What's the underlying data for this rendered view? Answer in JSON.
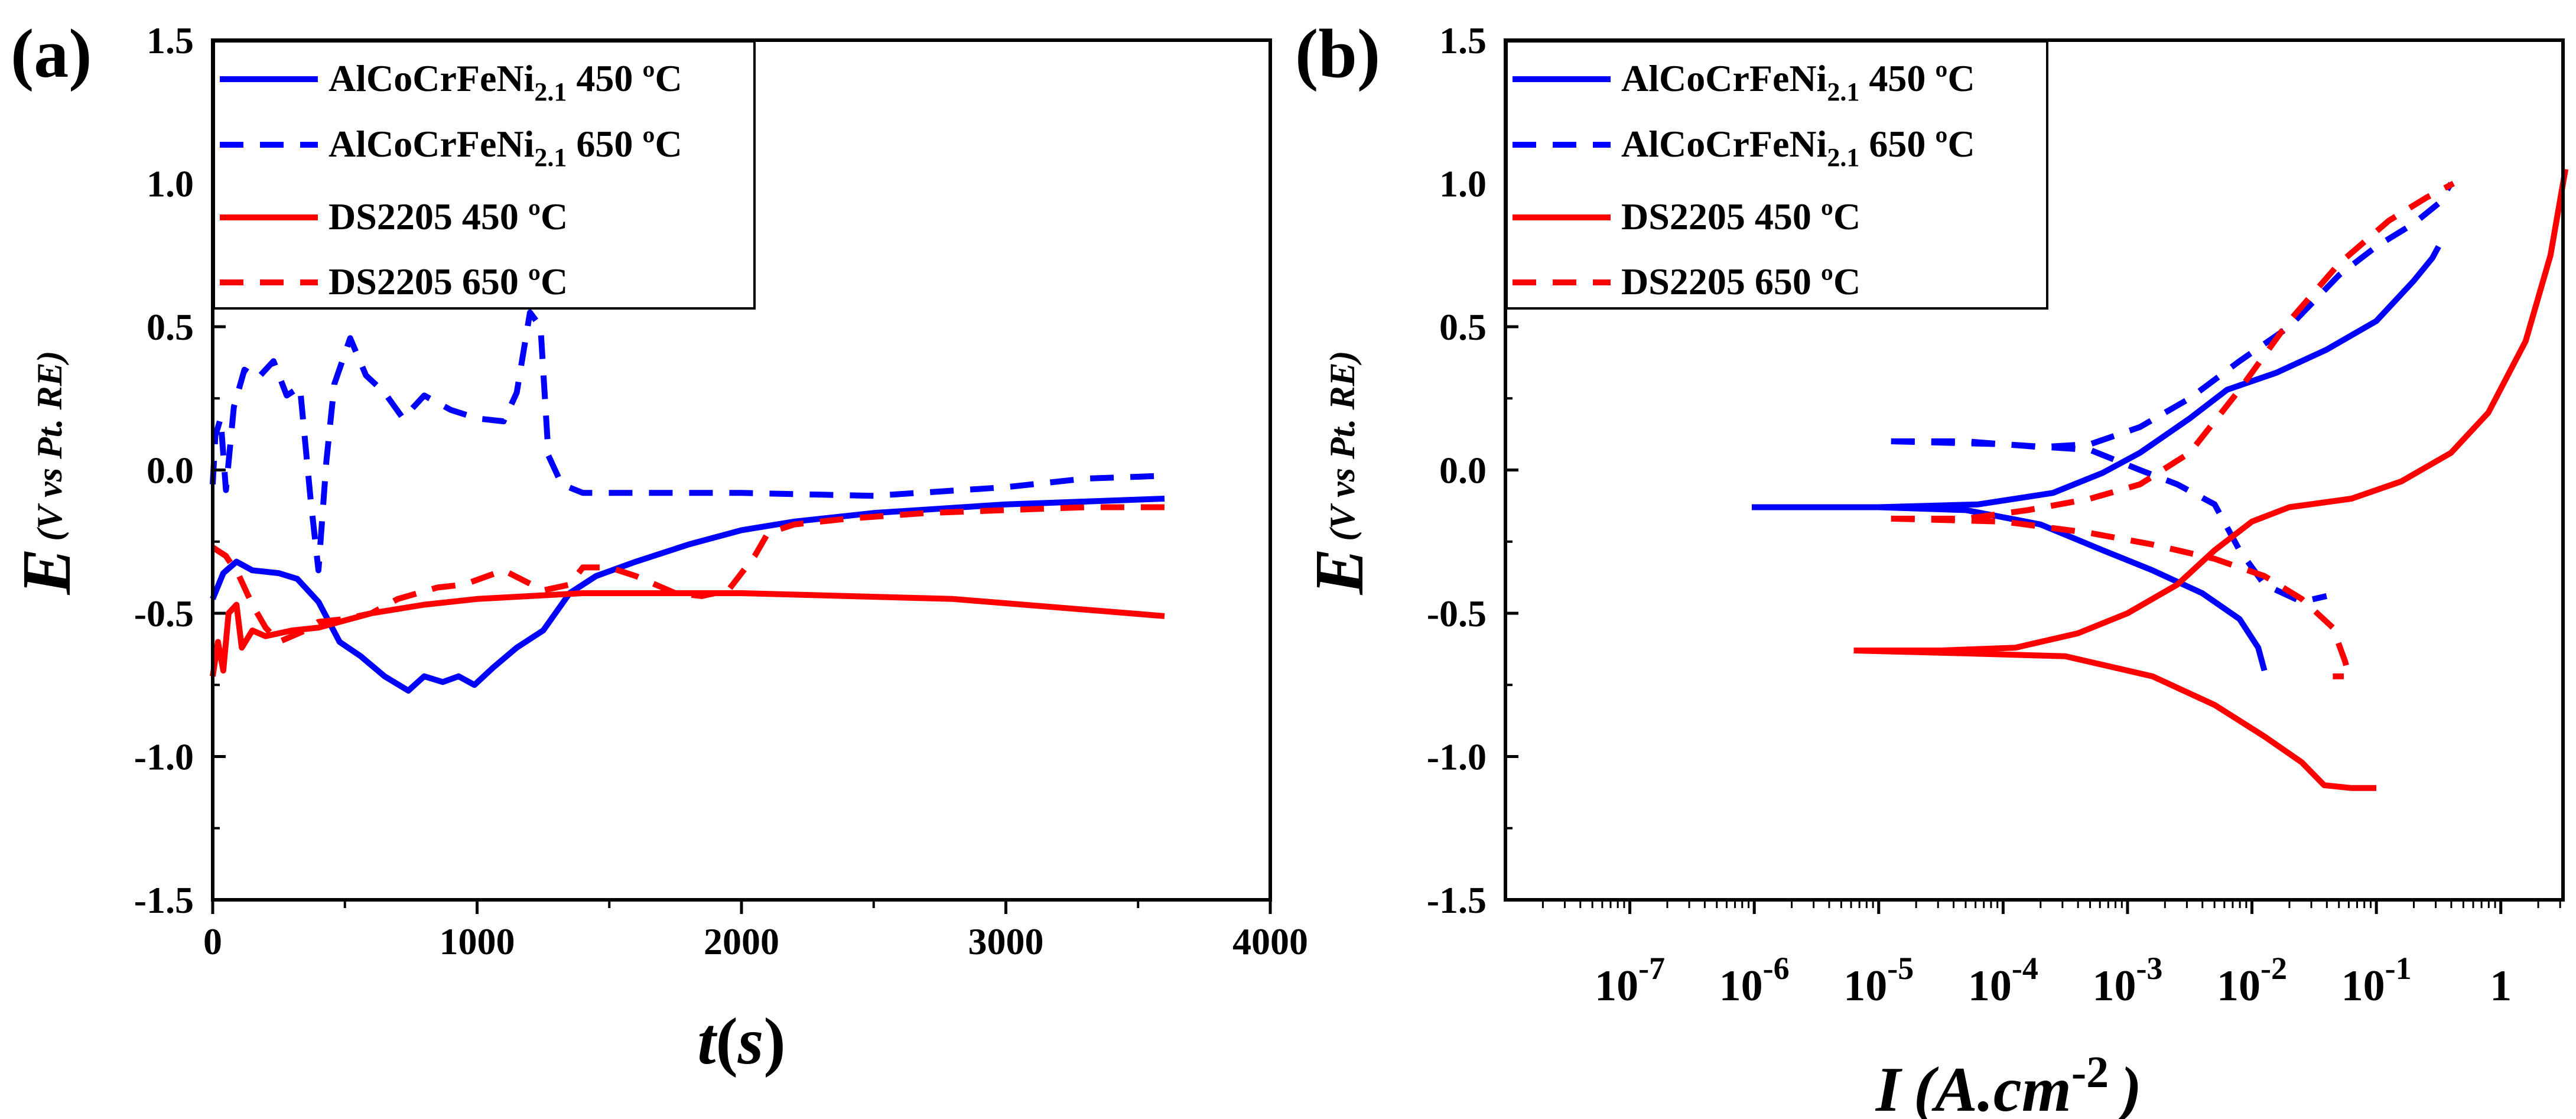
{
  "chart_data": [
    {
      "type": "line",
      "panel_label": "(a)",
      "xlabel_main": "t",
      "xlabel_paren_open": "(",
      "xlabel_unit": "s",
      "xlabel_paren_close": ")",
      "ylabel_main": "E",
      "ylabel_sub": "(V vs Pt. RE)",
      "xlim": [
        0,
        4000
      ],
      "ylim": [
        -1.5,
        1.5
      ],
      "xticks": [
        0,
        1000,
        2000,
        3000,
        4000
      ],
      "yticks": [
        -1.5,
        -1.0,
        -0.5,
        0.0,
        0.5,
        1.0,
        1.5
      ],
      "xtick_labels": [
        "0",
        "1000",
        "2000",
        "3000",
        "4000"
      ],
      "ytick_labels": [
        "-1.5",
        "-1.0",
        "-0.5",
        "0.0",
        "0.5",
        "1.0",
        "1.5"
      ],
      "legend_position": "top-left",
      "series": [
        {
          "name": "AlCoCrFeNi2.1 450 ºC",
          "legend_base": "AlCoCrFeNi",
          "legend_sub": "2.1",
          "legend_tail": " 450 ºC",
          "color": "#0000ff",
          "dash": "solid",
          "points": [
            [
              0,
              -0.45
            ],
            [
              40,
              -0.36
            ],
            [
              90,
              -0.32
            ],
            [
              150,
              -0.35
            ],
            [
              250,
              -0.36
            ],
            [
              320,
              -0.38
            ],
            [
              400,
              -0.46
            ],
            [
              480,
              -0.6
            ],
            [
              560,
              -0.65
            ],
            [
              650,
              -0.72
            ],
            [
              740,
              -0.77
            ],
            [
              800,
              -0.72
            ],
            [
              870,
              -0.74
            ],
            [
              930,
              -0.72
            ],
            [
              990,
              -0.75
            ],
            [
              1060,
              -0.69
            ],
            [
              1150,
              -0.62
            ],
            [
              1250,
              -0.56
            ],
            [
              1350,
              -0.43
            ],
            [
              1450,
              -0.37
            ],
            [
              1600,
              -0.32
            ],
            [
              1800,
              -0.26
            ],
            [
              2000,
              -0.21
            ],
            [
              2200,
              -0.18
            ],
            [
              2500,
              -0.15
            ],
            [
              3000,
              -0.12
            ],
            [
              3300,
              -0.11
            ],
            [
              3600,
              -0.1
            ]
          ]
        },
        {
          "name": "AlCoCrFeNi2.1 650 ºC",
          "legend_base": "AlCoCrFeNi",
          "legend_sub": "2.1",
          "legend_tail": " 650 ºC",
          "color": "#0000ff",
          "dash": "dashed",
          "points": [
            [
              0,
              -0.05
            ],
            [
              10,
              0.12
            ],
            [
              30,
              0.18
            ],
            [
              50,
              -0.07
            ],
            [
              80,
              0.22
            ],
            [
              120,
              0.35
            ],
            [
              170,
              0.32
            ],
            [
              230,
              0.38
            ],
            [
              280,
              0.26
            ],
            [
              330,
              0.29
            ],
            [
              370,
              -0.1
            ],
            [
              400,
              -0.35
            ],
            [
              430,
              0.03
            ],
            [
              460,
              0.3
            ],
            [
              520,
              0.46
            ],
            [
              580,
              0.33
            ],
            [
              650,
              0.27
            ],
            [
              720,
              0.18
            ],
            [
              800,
              0.26
            ],
            [
              900,
              0.21
            ],
            [
              1000,
              0.18
            ],
            [
              1100,
              0.17
            ],
            [
              1150,
              0.27
            ],
            [
              1200,
              0.55
            ],
            [
              1240,
              0.5
            ],
            [
              1270,
              0.05
            ],
            [
              1320,
              -0.05
            ],
            [
              1400,
              -0.08
            ],
            [
              1600,
              -0.08
            ],
            [
              1800,
              -0.08
            ],
            [
              2000,
              -0.08
            ],
            [
              2500,
              -0.09
            ],
            [
              3000,
              -0.06
            ],
            [
              3300,
              -0.03
            ],
            [
              3600,
              -0.02
            ]
          ]
        },
        {
          "name": "DS2205 450 ºC",
          "legend_base": "DS2205",
          "legend_sub": "",
          "legend_tail": " 450 ºC",
          "color": "#ff0000",
          "dash": "solid",
          "points": [
            [
              0,
              -0.72
            ],
            [
              20,
              -0.6
            ],
            [
              40,
              -0.7
            ],
            [
              60,
              -0.5
            ],
            [
              90,
              -0.47
            ],
            [
              110,
              -0.62
            ],
            [
              150,
              -0.56
            ],
            [
              200,
              -0.58
            ],
            [
              300,
              -0.56
            ],
            [
              400,
              -0.55
            ],
            [
              600,
              -0.5
            ],
            [
              800,
              -0.47
            ],
            [
              1000,
              -0.45
            ],
            [
              1200,
              -0.44
            ],
            [
              1400,
              -0.43
            ],
            [
              1800,
              -0.43
            ],
            [
              2000,
              -0.43
            ],
            [
              2400,
              -0.44
            ],
            [
              2800,
              -0.45
            ],
            [
              3200,
              -0.48
            ],
            [
              3600,
              -0.51
            ]
          ]
        },
        {
          "name": "DS2205 650 ºC",
          "legend_base": "DS2205",
          "legend_sub": "",
          "legend_tail": " 650 ºC",
          "color": "#ff0000",
          "dash": "dashed",
          "points": [
            [
              0,
              -0.27
            ],
            [
              50,
              -0.3
            ],
            [
              100,
              -0.37
            ],
            [
              150,
              -0.47
            ],
            [
              200,
              -0.55
            ],
            [
              250,
              -0.6
            ],
            [
              300,
              -0.58
            ],
            [
              350,
              -0.56
            ],
            [
              400,
              -0.53
            ],
            [
              500,
              -0.52
            ],
            [
              600,
              -0.5
            ],
            [
              700,
              -0.45
            ],
            [
              850,
              -0.41
            ],
            [
              950,
              -0.4
            ],
            [
              1100,
              -0.35
            ],
            [
              1250,
              -0.42
            ],
            [
              1350,
              -0.4
            ],
            [
              1400,
              -0.34
            ],
            [
              1500,
              -0.34
            ],
            [
              1600,
              -0.37
            ],
            [
              1750,
              -0.43
            ],
            [
              1850,
              -0.44
            ],
            [
              1950,
              -0.42
            ],
            [
              2050,
              -0.3
            ],
            [
              2100,
              -0.22
            ],
            [
              2200,
              -0.19
            ],
            [
              2400,
              -0.17
            ],
            [
              2700,
              -0.15
            ],
            [
              3000,
              -0.14
            ],
            [
              3300,
              -0.13
            ],
            [
              3600,
              -0.13
            ]
          ]
        }
      ]
    },
    {
      "type": "line",
      "panel_label": "(b)",
      "x_scale": "log",
      "xlabel_main": "I",
      "xlabel_unit": "(A.cm",
      "xlabel_exp": "-2",
      "xlabel_close": ")",
      "ylabel_main": "E",
      "ylabel_sub": "(V vs Pt. RE)",
      "xlim_log10": [
        -8,
        0.5
      ],
      "ylim": [
        -1.5,
        1.5
      ],
      "yticks": [
        -1.5,
        -1.0,
        -0.5,
        0.0,
        0.5,
        1.0,
        1.5
      ],
      "ytick_labels": [
        "-1.5",
        "-1.0",
        "-0.5",
        "0.0",
        "0.5",
        "1.0",
        "1.5"
      ],
      "xticks_log10": [
        -7,
        -6,
        -5,
        -4,
        -3,
        -2,
        -1,
        0
      ],
      "xtick_labels": [
        {
          "base": "10",
          "exp": "-7"
        },
        {
          "base": "10",
          "exp": "-6"
        },
        {
          "base": "10",
          "exp": "-5"
        },
        {
          "base": "10",
          "exp": "-4"
        },
        {
          "base": "10",
          "exp": "-3"
        },
        {
          "base": "10",
          "exp": "-2"
        },
        {
          "base": "10",
          "exp": "-1"
        },
        {
          "base": "1",
          "exp": ""
        }
      ],
      "legend_position": "top-left",
      "series": [
        {
          "name": "AlCoCrFeNi2.1 450 ºC",
          "legend_base": "AlCoCrFeNi",
          "legend_sub": "2.1",
          "legend_tail": " 450 ºC",
          "color": "#0000ff",
          "dash": "solid",
          "points_log10I": [
            [
              -6.02,
              -0.13
            ],
            [
              -5,
              -0.13
            ],
            [
              -4.2,
              -0.12
            ],
            [
              -3.6,
              -0.08
            ],
            [
              -3.2,
              -0.01
            ],
            [
              -2.9,
              0.06
            ],
            [
              -2.5,
              0.18
            ],
            [
              -2.2,
              0.28
            ],
            [
              -1.8,
              0.34
            ],
            [
              -1.4,
              0.42
            ],
            [
              -1.0,
              0.52
            ],
            [
              -0.7,
              0.66
            ],
            [
              -0.55,
              0.74
            ],
            [
              -0.5,
              0.78
            ]
          ],
          "points_cathodic_log10I": [
            [
              -6.02,
              -0.13
            ],
            [
              -5,
              -0.13
            ],
            [
              -4.3,
              -0.14
            ],
            [
              -3.7,
              -0.19
            ],
            [
              -3.2,
              -0.28
            ],
            [
              -2.8,
              -0.35
            ],
            [
              -2.4,
              -0.43
            ],
            [
              -2.1,
              -0.52
            ],
            [
              -1.95,
              -0.62
            ],
            [
              -1.9,
              -0.7
            ]
          ]
        },
        {
          "name": "AlCoCrFeNi2.1 650 ºC",
          "legend_base": "AlCoCrFeNi",
          "legend_sub": "2.1",
          "legend_tail": " 650 ºC",
          "color": "#0000ff",
          "dash": "dashed",
          "points_log10I": [
            [
              -4.9,
              0.1
            ],
            [
              -4.3,
              0.1
            ],
            [
              -3.7,
              0.08
            ],
            [
              -3.3,
              0.09
            ],
            [
              -2.9,
              0.15
            ],
            [
              -2.5,
              0.25
            ],
            [
              -2.1,
              0.38
            ],
            [
              -1.7,
              0.5
            ],
            [
              -1.3,
              0.68
            ],
            [
              -1.0,
              0.78
            ],
            [
              -0.7,
              0.86
            ],
            [
              -0.5,
              0.93
            ],
            [
              -0.4,
              1.0
            ]
          ],
          "points_cathodic_log10I": [
            [
              -4.9,
              0.1
            ],
            [
              -4,
              0.09
            ],
            [
              -3.3,
              0.07
            ],
            [
              -2.9,
              0.0
            ],
            [
              -2.6,
              -0.05
            ],
            [
              -2.3,
              -0.12
            ],
            [
              -2.1,
              -0.28
            ],
            [
              -1.9,
              -0.4
            ],
            [
              -1.6,
              -0.46
            ],
            [
              -1.4,
              -0.44
            ]
          ]
        },
        {
          "name": "DS2205 450 ºC",
          "legend_base": "DS2205",
          "legend_sub": "",
          "legend_tail": " 450 ºC",
          "color": "#ff0000",
          "dash": "solid",
          "points_log10I": [
            [
              -5.2,
              -0.63
            ],
            [
              -4.5,
              -0.63
            ],
            [
              -3.9,
              -0.62
            ],
            [
              -3.4,
              -0.57
            ],
            [
              -3.0,
              -0.5
            ],
            [
              -2.6,
              -0.4
            ],
            [
              -2.3,
              -0.28
            ],
            [
              -2.0,
              -0.18
            ],
            [
              -1.7,
              -0.13
            ],
            [
              -1.2,
              -0.1
            ],
            [
              -0.8,
              -0.04
            ],
            [
              -0.4,
              0.06
            ],
            [
              -0.1,
              0.2
            ],
            [
              0.2,
              0.45
            ],
            [
              0.4,
              0.75
            ],
            [
              0.52,
              1.05
            ]
          ],
          "points_cathodic_log10I": [
            [
              -5.2,
              -0.63
            ],
            [
              -4.3,
              -0.64
            ],
            [
              -3.5,
              -0.65
            ],
            [
              -2.8,
              -0.72
            ],
            [
              -2.3,
              -0.82
            ],
            [
              -1.9,
              -0.93
            ],
            [
              -1.6,
              -1.02
            ],
            [
              -1.42,
              -1.1
            ],
            [
              -1.2,
              -1.11
            ],
            [
              -1.0,
              -1.11
            ]
          ]
        },
        {
          "name": "DS2205 650 ºC",
          "legend_base": "DS2205",
          "legend_sub": "",
          "legend_tail": " 650 ºC",
          "color": "#ff0000",
          "dash": "dashed",
          "points_log10I": [
            [
              -4.9,
              -0.17
            ],
            [
              -4.3,
              -0.17
            ],
            [
              -3.8,
              -0.14
            ],
            [
              -3.3,
              -0.1
            ],
            [
              -2.9,
              -0.05
            ],
            [
              -2.5,
              0.06
            ],
            [
              -2.1,
              0.28
            ],
            [
              -1.7,
              0.52
            ],
            [
              -1.3,
              0.72
            ],
            [
              -0.9,
              0.87
            ],
            [
              -0.6,
              0.95
            ],
            [
              -0.38,
              1.0
            ]
          ],
          "points_cathodic_log10I": [
            [
              -4.9,
              -0.17
            ],
            [
              -4.0,
              -0.18
            ],
            [
              -3.3,
              -0.22
            ],
            [
              -2.8,
              -0.26
            ],
            [
              -2.3,
              -0.31
            ],
            [
              -1.9,
              -0.37
            ],
            [
              -1.6,
              -0.45
            ],
            [
              -1.35,
              -0.55
            ],
            [
              -1.25,
              -0.67
            ],
            [
              -1.22,
              -0.72
            ],
            [
              -1.35,
              -0.72
            ]
          ]
        }
      ]
    }
  ]
}
